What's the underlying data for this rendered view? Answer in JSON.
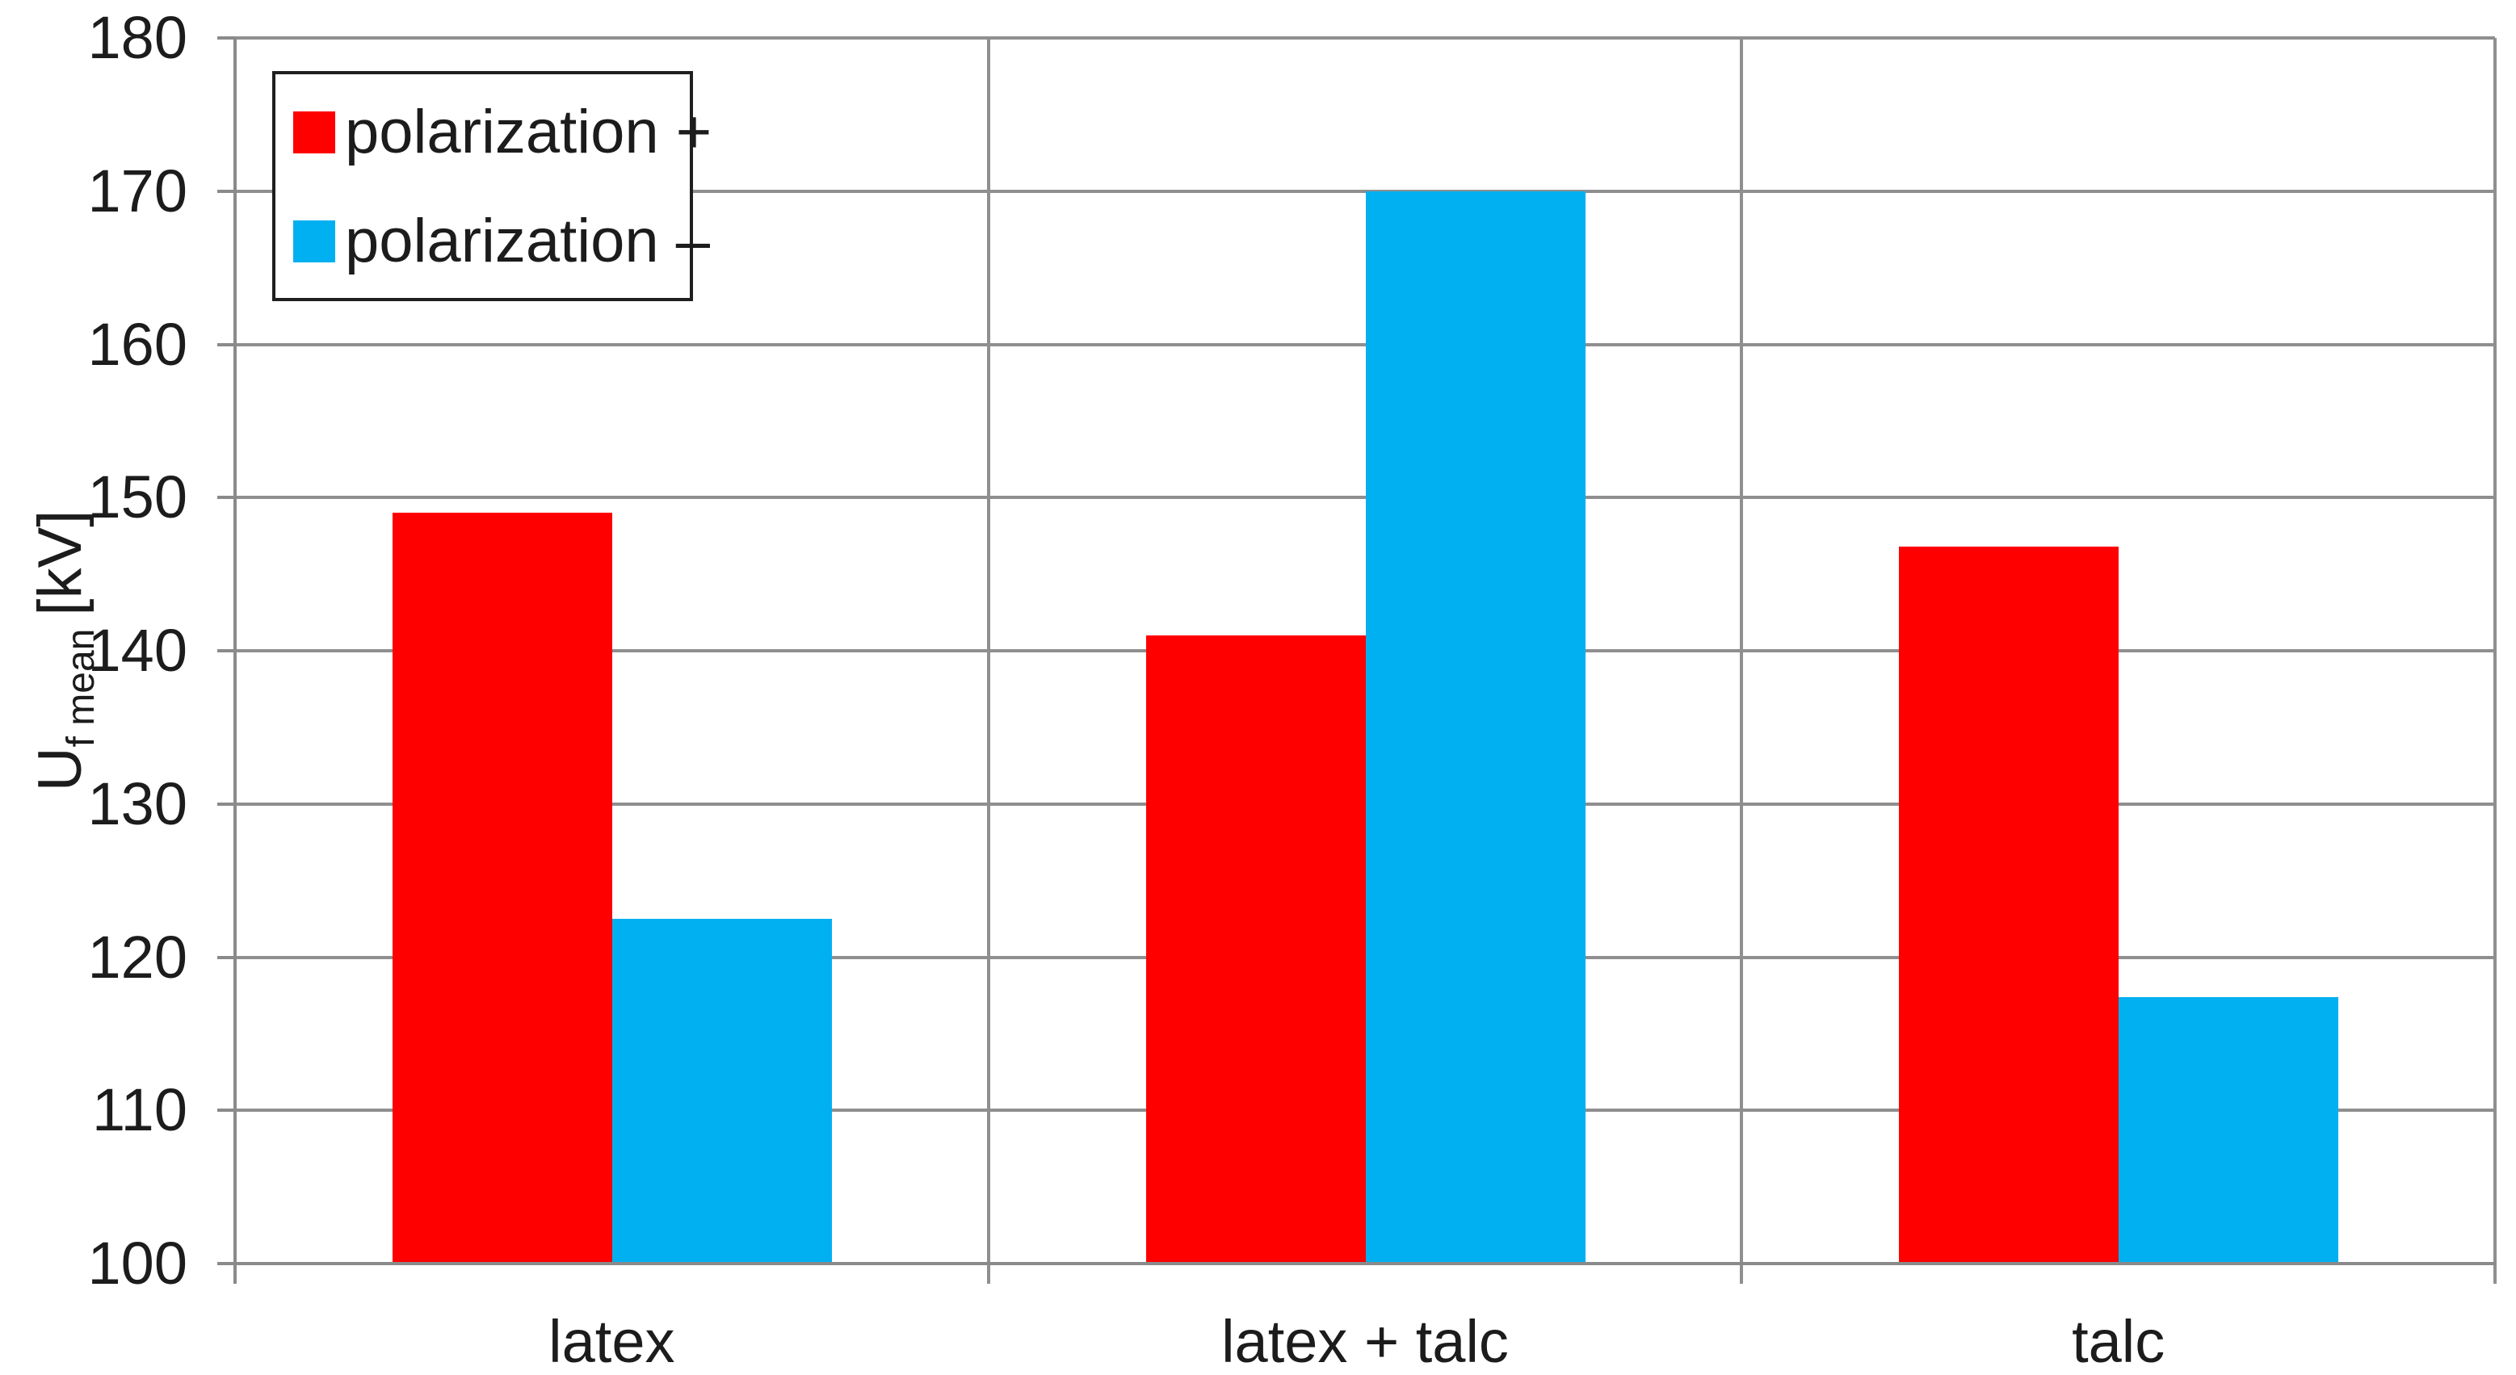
{
  "chart_data": {
    "type": "bar",
    "categories": [
      "latex",
      "latex + talc",
      "talc"
    ],
    "series": [
      {
        "name": "polarization +",
        "color": "#ff0000",
        "values": [
          149,
          141,
          146.8
        ]
      },
      {
        "name": "polarization –",
        "color": "#00b0f0",
        "values": [
          122.5,
          170,
          117.4
        ]
      }
    ],
    "title": "",
    "xlabel": "",
    "ylabel": "U f mean [kV]",
    "ylabel_parts": {
      "main": "U",
      "sub": "f mean",
      "unit": "[kV]"
    },
    "ylim": [
      100,
      180
    ],
    "yticks": [
      180,
      170,
      160,
      150,
      140,
      130,
      120,
      110,
      100
    ],
    "grid": "horizontal-on",
    "legend_position": "top-left",
    "axis_color": "#8a8a8a",
    "gridline_color": "#8f8f8f",
    "text_color": "#1c1c1c",
    "background_color": "#ffffff"
  }
}
